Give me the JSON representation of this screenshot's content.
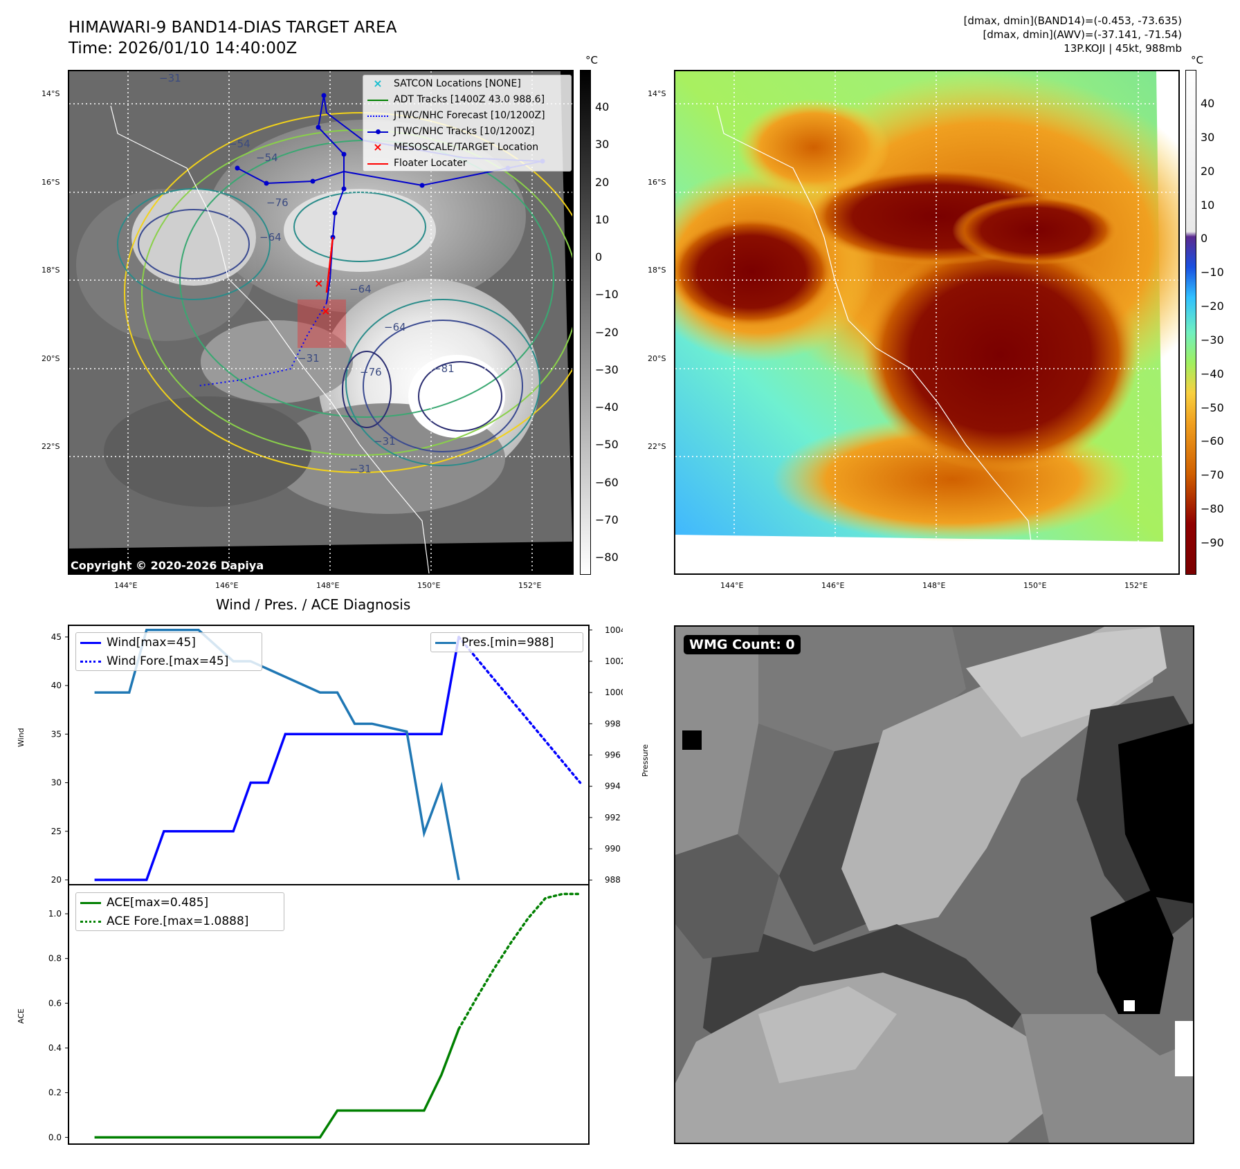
{
  "header": {
    "title": "HIMAWARI-9 BAND14-DIAS TARGET AREA",
    "time": "Time: 2026/01/10 14:40:00Z",
    "info_line1": "[dmax, dmin](BAND14)=(-0.453, -73.635)",
    "info_line2": "[dmax, dmin](AWV)=(-37.141, -71.54)",
    "info_line3": "13P.KOJI | 45kt, 988mb"
  },
  "map_ir": {
    "lat_labels": [
      "14°S",
      "16°S",
      "18°S",
      "20°S",
      "22°S"
    ],
    "lon_labels": [
      "144°E",
      "146°E",
      "148°E",
      "150°E",
      "152°E"
    ],
    "colorbar_unit": "°C",
    "colorbar_ticks": [
      "40",
      "30",
      "20",
      "10",
      "0",
      "−10",
      "−20",
      "−30",
      "−40",
      "−50",
      "−60",
      "−70",
      "−80"
    ],
    "contour_labels": [
      "−31",
      "−54",
      "−54",
      "−76",
      "−64",
      "−31",
      "−81",
      "−76",
      "−64",
      "−31",
      "−31",
      "−64"
    ],
    "copyright": "Copyright © 2020-2026 Dapiya",
    "legend": [
      {
        "label": "SATCON Locations [NONE]",
        "color": "#17becf",
        "symbol": "x"
      },
      {
        "label": "ADT Tracks [1400Z 43.0 988.6]",
        "color": "#008000",
        "symbol": "line"
      },
      {
        "label": "JTWC/NHC Forecast [10/1200Z]",
        "color": "#0000ff",
        "symbol": "dotted"
      },
      {
        "label": "JTWC/NHC Tracks [10/1200Z]",
        "color": "#0000cc",
        "symbol": "line-dot"
      },
      {
        "label": "MESOSCALE/TARGET Location",
        "color": "#ff0000",
        "symbol": "x"
      },
      {
        "label": "Floater Locater",
        "color": "#ff0000",
        "symbol": "line"
      }
    ]
  },
  "map_awv": {
    "lat_labels": [
      "14°S",
      "16°S",
      "18°S",
      "20°S",
      "22°S"
    ],
    "lon_labels": [
      "144°E",
      "146°E",
      "148°E",
      "150°E",
      "152°E"
    ],
    "colorbar_unit": "°C",
    "colorbar_ticks": [
      "40",
      "30",
      "20",
      "10",
      "0",
      "−10",
      "−20",
      "−30",
      "−40",
      "−50",
      "−60",
      "−70",
      "−80",
      "−90"
    ]
  },
  "diagnosis": {
    "title": "Wind / Pres. / ACE Diagnosis",
    "wind_axis_label": "Wind",
    "pressure_axis_label": "Pressure",
    "ace_axis_label": "ACE"
  },
  "wmg": {
    "label": "WMG Count: 0"
  },
  "chart_data": [
    {
      "type": "line",
      "title": "Wind / Pres. / ACE Diagnosis",
      "ylabel": "Wind",
      "ylim": [
        19.5,
        46.2
      ],
      "yticks": [
        20,
        25,
        30,
        35,
        40,
        45
      ],
      "series": [
        {
          "name": "Wind[max=45]",
          "style": "solid",
          "color": "#0000ff",
          "x": [
            0,
            3,
            4,
            8,
            9,
            10,
            11,
            12,
            20,
            21
          ],
          "y": [
            20,
            20,
            25,
            25,
            30,
            30,
            35,
            35,
            35,
            45
          ]
        },
        {
          "name": "Wind Fore.[max=45]",
          "style": "dotted",
          "color": "#0000ff",
          "x": [
            21,
            28
          ],
          "y": [
            45,
            30
          ]
        }
      ],
      "xlim": [
        -1.5,
        28.5
      ]
    },
    {
      "type": "line",
      "ylabel": "Pressure",
      "ylim": [
        987.7,
        1004.3
      ],
      "yticks": [
        988,
        990,
        992,
        994,
        996,
        998,
        1000,
        1002,
        1004
      ],
      "series": [
        {
          "name": "Pres.[min=988]",
          "style": "solid",
          "color": "#1f77b4",
          "x": [
            0,
            2,
            3,
            6,
            8,
            9,
            13,
            14,
            15,
            16,
            18,
            19,
            20,
            21
          ],
          "y": [
            1000,
            1000,
            1004,
            1004,
            1002,
            1002,
            1000,
            1000,
            998,
            998,
            997.5,
            991,
            994,
            988
          ]
        }
      ],
      "xlim": [
        -1.5,
        28.5
      ]
    },
    {
      "type": "line",
      "ylabel": "ACE",
      "ylim": [
        -0.03,
        1.13
      ],
      "yticks": [
        0.0,
        0.2,
        0.4,
        0.6,
        0.8,
        1.0
      ],
      "series": [
        {
          "name": "ACE[max=0.485]",
          "style": "solid",
          "color": "#008000",
          "x": [
            0,
            13,
            14,
            19,
            20,
            21
          ],
          "y": [
            0,
            0,
            0.12,
            0.12,
            0.28,
            0.485
          ]
        },
        {
          "name": "ACE Fore.[max=1.0888]",
          "style": "dotted",
          "color": "#008000",
          "x": [
            21,
            22,
            23,
            24,
            25,
            26,
            27,
            28
          ],
          "y": [
            0.485,
            0.62,
            0.75,
            0.87,
            0.98,
            1.07,
            1.0888,
            1.0888
          ]
        }
      ],
      "xlim": [
        -1.5,
        28.5
      ]
    }
  ]
}
